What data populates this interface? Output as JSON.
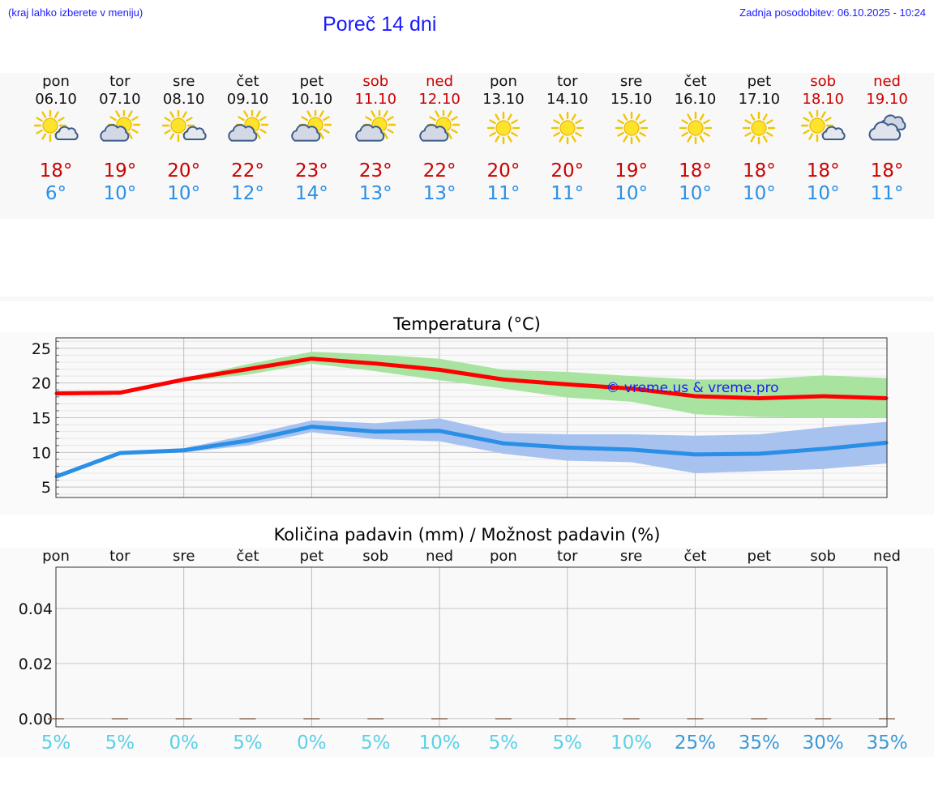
{
  "header": {
    "hint": "(kraj lahko izberete v meniju)",
    "title": "Poreč 14 dni",
    "updated": "Zadnja posodobitev: 06.10.2025 - 10:24"
  },
  "days": [
    {
      "name": "pon",
      "date": "06.10",
      "weekend": false,
      "icon": "sun-cloud-icon",
      "tmax": "18°",
      "tmin": "6°"
    },
    {
      "name": "tor",
      "date": "07.10",
      "weekend": false,
      "icon": "cloud-sun-icon",
      "tmax": "19°",
      "tmin": "10°"
    },
    {
      "name": "sre",
      "date": "08.10",
      "weekend": false,
      "icon": "sun-cloud-icon",
      "tmax": "20°",
      "tmin": "10°"
    },
    {
      "name": "čet",
      "date": "09.10",
      "weekend": false,
      "icon": "cloud-sun-icon",
      "tmax": "22°",
      "tmin": "12°"
    },
    {
      "name": "pet",
      "date": "10.10",
      "weekend": false,
      "icon": "cloud-sun-icon",
      "tmax": "23°",
      "tmin": "14°"
    },
    {
      "name": "sob",
      "date": "11.10",
      "weekend": true,
      "icon": "cloud-sun-icon",
      "tmax": "23°",
      "tmin": "13°"
    },
    {
      "name": "ned",
      "date": "12.10",
      "weekend": true,
      "icon": "cloud-sun-icon",
      "tmax": "22°",
      "tmin": "13°"
    },
    {
      "name": "pon",
      "date": "13.10",
      "weekend": false,
      "icon": "sun-icon",
      "tmax": "20°",
      "tmin": "11°"
    },
    {
      "name": "tor",
      "date": "14.10",
      "weekend": false,
      "icon": "sun-icon",
      "tmax": "20°",
      "tmin": "11°"
    },
    {
      "name": "sre",
      "date": "15.10",
      "weekend": false,
      "icon": "sun-icon",
      "tmax": "19°",
      "tmin": "10°"
    },
    {
      "name": "čet",
      "date": "16.10",
      "weekend": false,
      "icon": "sun-icon",
      "tmax": "18°",
      "tmin": "10°"
    },
    {
      "name": "pet",
      "date": "17.10",
      "weekend": false,
      "icon": "sun-icon",
      "tmax": "18°",
      "tmin": "10°"
    },
    {
      "name": "sob",
      "date": "18.10",
      "weekend": true,
      "icon": "sun-cloud-icon",
      "tmax": "18°",
      "tmin": "10°"
    },
    {
      "name": "ned",
      "date": "19.10",
      "weekend": true,
      "icon": "clouds-icon",
      "tmax": "18°",
      "tmin": "11°"
    }
  ],
  "chart_data": [
    {
      "type": "line",
      "title": "Temperatura (°C)",
      "xlabel": "",
      "ylabel": "",
      "ylim": [
        3.5,
        26.5
      ],
      "yticks": [
        5,
        10,
        15,
        20,
        25
      ],
      "grid": true,
      "watermark": "© vreme.us & vreme.pro",
      "x": [
        0,
        1,
        2,
        3,
        4,
        5,
        6,
        7,
        8,
        9,
        10,
        11,
        12,
        13
      ],
      "series": [
        {
          "name": "max",
          "color": "#ff0000",
          "values": [
            18.5,
            18.6,
            20.5,
            22.0,
            23.5,
            22.8,
            21.9,
            20.5,
            19.8,
            19.2,
            18.1,
            17.8,
            18.1,
            17.8
          ],
          "band_low": [
            18.4,
            18.4,
            20.2,
            21.2,
            22.8,
            21.7,
            20.4,
            19.2,
            17.9,
            17.3,
            15.5,
            15.1,
            15.0,
            15.0
          ],
          "band_high": [
            18.7,
            18.8,
            20.7,
            22.7,
            24.5,
            24.1,
            23.5,
            21.9,
            21.6,
            21.0,
            20.5,
            20.5,
            21.1,
            20.7
          ],
          "band_color": "#a8e4a0"
        },
        {
          "name": "min",
          "color": "#2a8fe6",
          "values": [
            6.5,
            9.9,
            10.3,
            11.7,
            13.7,
            13.0,
            13.1,
            11.3,
            10.7,
            10.4,
            9.7,
            9.8,
            10.5,
            11.4
          ],
          "band_low": [
            6.3,
            9.7,
            10.0,
            11.0,
            12.9,
            11.9,
            11.6,
            9.8,
            8.8,
            8.6,
            7.0,
            7.3,
            7.6,
            8.4
          ],
          "band_high": [
            6.7,
            10.1,
            10.6,
            12.5,
            14.6,
            14.2,
            14.9,
            12.8,
            12.6,
            12.6,
            12.4,
            12.6,
            13.6,
            14.4
          ],
          "band_color": "#a8c2f0"
        }
      ]
    },
    {
      "type": "bar",
      "title": "Količina padavin (mm) / Možnost padavin (%)",
      "categories": [
        "pon",
        "tor",
        "sre",
        "čet",
        "pet",
        "sob",
        "ned",
        "pon",
        "tor",
        "sre",
        "čet",
        "pet",
        "sob",
        "ned"
      ],
      "values": [
        0,
        0,
        0,
        0,
        0,
        0,
        0,
        0,
        0,
        0,
        0,
        0,
        0,
        0
      ],
      "ylim": [
        -0.003,
        0.055
      ],
      "yticks": [
        0.0,
        0.02,
        0.04
      ],
      "ytick_labels": [
        "0.00",
        "0.02",
        "0.04"
      ],
      "grid": true,
      "probability": [
        "5%",
        "5%",
        "0%",
        "5%",
        "0%",
        "5%",
        "10%",
        "5%",
        "5%",
        "10%",
        "25%",
        "35%",
        "30%",
        "35%"
      ],
      "probability_colors": [
        "#5ad0e8",
        "#5ad0e8",
        "#5ad0e8",
        "#5ad0e8",
        "#5ad0e8",
        "#5ad0e8",
        "#5ad0e8",
        "#5ad0e8",
        "#5ad0e8",
        "#5ad0e8",
        "#3a9ad6",
        "#3a9ad6",
        "#3a9ad6",
        "#3a9ad6"
      ]
    }
  ]
}
